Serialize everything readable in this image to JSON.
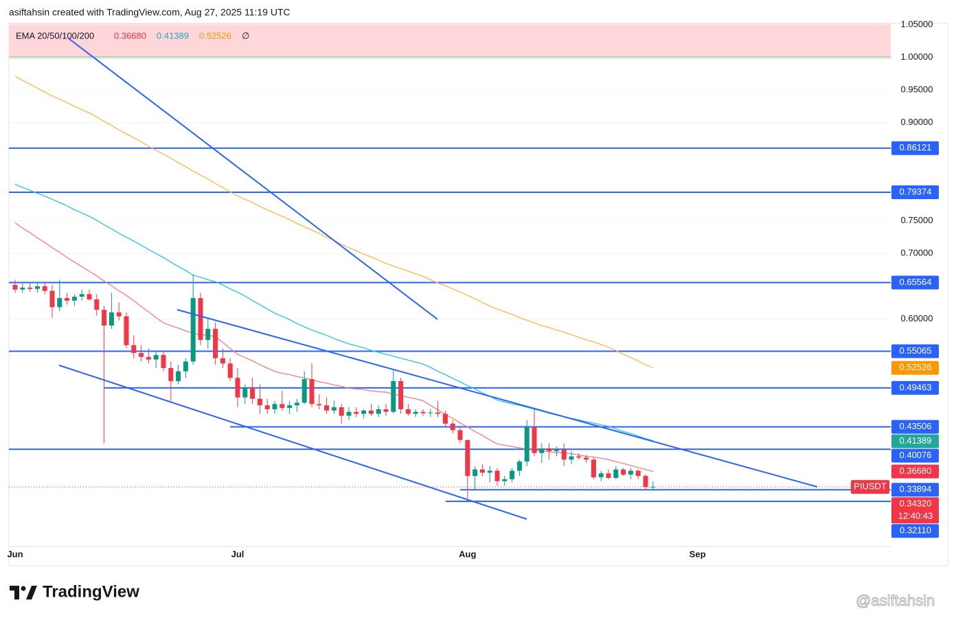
{
  "header": "asiftahsin created with TradingView.com, Aug 27, 2025 11:19 UTC",
  "chart_data": {
    "type": "candlestick",
    "symbol": "PIUSDT",
    "indicator": "EMA 20/50/100/200",
    "ema200_value": "∅",
    "categories": [
      "Jun",
      null,
      null,
      null,
      null,
      null,
      null,
      null,
      null,
      null,
      null,
      null,
      null,
      null,
      null,
      null,
      null,
      null,
      null,
      null,
      null,
      null,
      null,
      null,
      null,
      null,
      null,
      null,
      null,
      null,
      "Jul",
      null,
      null,
      null,
      null,
      null,
      null,
      null,
      null,
      null,
      null,
      null,
      null,
      null,
      null,
      null,
      null,
      null,
      null,
      null,
      null,
      null,
      null,
      null,
      null,
      null,
      null,
      null,
      null,
      null,
      null,
      "Aug",
      null,
      null,
      null,
      null,
      null,
      null,
      null,
      null,
      null,
      null,
      null,
      null,
      null,
      null,
      null,
      null,
      null,
      null,
      null,
      null,
      null,
      null,
      null,
      null,
      null,
      null,
      null,
      null,
      null,
      null,
      "Sep"
    ],
    "open": [
      0.652,
      0.645,
      0.648,
      0.646,
      0.65,
      0.643,
      0.618,
      0.632,
      0.628,
      0.634,
      0.638,
      0.63,
      0.614,
      0.59,
      0.61,
      0.604,
      0.56,
      0.548,
      0.542,
      0.538,
      0.545,
      0.525,
      0.505,
      0.52,
      0.535,
      0.632,
      0.568,
      0.585,
      0.54,
      0.532,
      0.51,
      0.48,
      0.495,
      0.478,
      0.468,
      0.462,
      0.47,
      0.464,
      0.468,
      0.472,
      0.508,
      0.47,
      0.468,
      0.46,
      0.465,
      0.452,
      0.458,
      0.455,
      0.46,
      0.455,
      0.462,
      0.458,
      0.505,
      0.462,
      0.455,
      0.458,
      0.456,
      0.457,
      0.455,
      0.44,
      0.43,
      0.415,
      0.36,
      0.37,
      0.365,
      0.368,
      0.352,
      0.355,
      0.368,
      0.382,
      0.435,
      0.395,
      0.402,
      0.398,
      0.4,
      0.385,
      0.39,
      0.388,
      0.385,
      0.358,
      0.364,
      0.357,
      0.37,
      0.362,
      0.368,
      0.36,
      0.343,
      null,
      null,
      null,
      null,
      null,
      null
    ],
    "high": [
      0.66,
      0.655,
      0.656,
      0.655,
      0.655,
      0.652,
      0.66,
      0.64,
      0.638,
      0.645,
      0.645,
      0.638,
      0.62,
      0.64,
      0.625,
      0.61,
      0.575,
      0.56,
      0.555,
      0.552,
      0.552,
      0.535,
      0.53,
      0.54,
      0.668,
      0.64,
      0.6,
      0.595,
      0.555,
      0.54,
      0.525,
      0.5,
      0.51,
      0.5,
      0.478,
      0.475,
      0.49,
      0.475,
      0.478,
      0.52,
      0.532,
      0.485,
      0.48,
      0.475,
      0.47,
      0.465,
      0.465,
      0.462,
      0.47,
      0.468,
      0.47,
      0.522,
      0.51,
      0.47,
      0.462,
      0.462,
      0.462,
      0.475,
      0.46,
      0.445,
      0.435,
      0.415,
      0.375,
      0.378,
      0.375,
      0.372,
      0.36,
      0.372,
      0.385,
      0.445,
      0.463,
      0.41,
      0.41,
      0.405,
      0.41,
      0.398,
      0.395,
      0.392,
      0.388,
      0.368,
      0.37,
      0.375,
      0.372,
      0.372,
      0.37,
      0.362,
      0.352,
      null,
      null,
      null,
      null,
      null,
      null
    ],
    "low": [
      0.64,
      0.64,
      0.642,
      0.64,
      0.638,
      0.602,
      0.612,
      0.622,
      0.62,
      0.628,
      0.628,
      0.605,
      0.41,
      0.585,
      0.598,
      0.555,
      0.54,
      0.535,
      0.532,
      0.525,
      0.52,
      0.475,
      0.5,
      0.51,
      0.53,
      0.56,
      0.555,
      0.53,
      0.525,
      0.505,
      0.465,
      0.47,
      0.47,
      0.455,
      0.455,
      0.455,
      0.46,
      0.455,
      0.458,
      0.47,
      0.465,
      0.462,
      0.455,
      0.455,
      0.44,
      0.445,
      0.45,
      0.448,
      0.452,
      0.45,
      0.452,
      0.455,
      0.455,
      0.452,
      0.45,
      0.452,
      0.45,
      0.45,
      0.435,
      0.425,
      0.41,
      0.325,
      0.34,
      0.36,
      0.35,
      0.345,
      0.345,
      0.35,
      0.36,
      0.375,
      0.39,
      0.38,
      0.385,
      0.39,
      0.375,
      0.378,
      0.385,
      0.38,
      0.355,
      0.352,
      0.355,
      0.355,
      0.36,
      0.355,
      0.355,
      0.338,
      0.338,
      null,
      null,
      null,
      null,
      null,
      null
    ],
    "close": [
      0.645,
      0.648,
      0.646,
      0.65,
      0.643,
      0.618,
      0.632,
      0.628,
      0.634,
      0.638,
      0.63,
      0.614,
      0.59,
      0.61,
      0.604,
      0.56,
      0.548,
      0.542,
      0.538,
      0.545,
      0.525,
      0.505,
      0.52,
      0.535,
      0.632,
      0.568,
      0.585,
      0.54,
      0.532,
      0.51,
      0.48,
      0.495,
      0.478,
      0.468,
      0.462,
      0.47,
      0.464,
      0.468,
      0.472,
      0.508,
      0.47,
      0.468,
      0.46,
      0.465,
      0.452,
      0.458,
      0.455,
      0.46,
      0.455,
      0.462,
      0.458,
      0.505,
      0.462,
      0.455,
      0.458,
      0.456,
      0.457,
      0.455,
      0.44,
      0.43,
      0.415,
      0.36,
      0.37,
      0.365,
      0.368,
      0.352,
      0.355,
      0.368,
      0.382,
      0.435,
      0.395,
      0.402,
      0.398,
      0.4,
      0.385,
      0.39,
      0.388,
      0.385,
      0.358,
      0.364,
      0.357,
      0.37,
      0.362,
      0.368,
      0.36,
      0.343,
      0.3432,
      null,
      null,
      null,
      null,
      null,
      null
    ],
    "up_color": "#089981",
    "down_color": "#f23645",
    "ylim": [
      0.252,
      1.052
    ],
    "yticks": [
      {
        "value": 1.05,
        "label": "1.05000"
      },
      {
        "value": 1.0,
        "label": "1.00000"
      },
      {
        "value": 0.95,
        "label": "0.95000"
      },
      {
        "value": 0.9,
        "label": "0.90000"
      },
      {
        "value": 0.75,
        "label": "0.75000"
      },
      {
        "value": 0.7,
        "label": "0.70000"
      },
      {
        "value": 0.6,
        "label": "0.60000"
      }
    ],
    "ema": [
      {
        "color": "#f77c80",
        "badge_color": "#f23645",
        "badge": {
          "value": 0.3668,
          "label": "0.36680"
        },
        "values": [
          0.747,
          0.739,
          0.732,
          0.724,
          0.717,
          0.709,
          0.702,
          0.694,
          0.687,
          0.68,
          0.673,
          0.666,
          0.658,
          0.651,
          0.643,
          0.636,
          0.628,
          0.619,
          0.611,
          0.602,
          0.594,
          0.59,
          0.586,
          0.582,
          0.578,
          0.576,
          0.575,
          0.573,
          0.564,
          0.555,
          0.546,
          0.541,
          0.536,
          0.53,
          0.525,
          0.52,
          0.517,
          0.515,
          0.512,
          0.51,
          0.507,
          0.504,
          0.502,
          0.499,
          0.497,
          0.494,
          0.493,
          0.492,
          0.49,
          0.489,
          0.488,
          0.485,
          0.483,
          0.48,
          0.478,
          0.475,
          0.468,
          0.461,
          0.454,
          0.448,
          0.441,
          0.435,
          0.428,
          0.422,
          0.415,
          0.409,
          0.407,
          0.405,
          0.403,
          0.401,
          0.399,
          0.398,
          0.397,
          0.396,
          0.395,
          0.394,
          0.392,
          0.39,
          0.389,
          0.387,
          0.385,
          0.382,
          0.379,
          0.376,
          0.373,
          0.37,
          0.3668,
          null,
          null,
          null,
          null,
          null,
          null
        ]
      },
      {
        "color": "#26c6da",
        "badge_color": "#22a79a",
        "badge": {
          "value": 0.41389,
          "label": "0.41389"
        },
        "values": [
          0.806,
          0.801,
          0.797,
          0.792,
          0.788,
          0.783,
          0.778,
          0.773,
          0.767,
          0.762,
          0.757,
          0.751,
          0.744,
          0.738,
          0.731,
          0.725,
          0.719,
          0.713,
          0.706,
          0.7,
          0.694,
          0.687,
          0.68,
          0.674,
          0.667,
          0.664,
          0.66,
          0.657,
          0.652,
          0.646,
          0.641,
          0.635,
          0.628,
          0.622,
          0.615,
          0.609,
          0.604,
          0.599,
          0.593,
          0.588,
          0.583,
          0.579,
          0.575,
          0.57,
          0.566,
          0.562,
          0.559,
          0.556,
          0.552,
          0.549,
          0.546,
          0.543,
          0.54,
          0.537,
          0.534,
          0.531,
          0.526,
          0.52,
          0.515,
          0.509,
          0.504,
          0.498,
          0.493,
          0.487,
          0.482,
          0.476,
          0.473,
          0.47,
          0.468,
          0.465,
          0.462,
          0.459,
          0.456,
          0.453,
          0.451,
          0.448,
          0.446,
          0.443,
          0.441,
          0.438,
          0.436,
          0.432,
          0.428,
          0.425,
          0.421,
          0.417,
          0.41389,
          null,
          null,
          null,
          null,
          null,
          null
        ]
      },
      {
        "color": "#ffb74d",
        "badge_color": "#ff9800",
        "badge": {
          "value": 0.52526,
          "label": "0.52526"
        },
        "values": [
          0.971,
          0.965,
          0.959,
          0.953,
          0.947,
          0.941,
          0.936,
          0.931,
          0.925,
          0.92,
          0.915,
          0.909,
          0.902,
          0.896,
          0.889,
          0.883,
          0.877,
          0.871,
          0.864,
          0.858,
          0.852,
          0.846,
          0.839,
          0.833,
          0.826,
          0.82,
          0.814,
          0.807,
          0.801,
          0.794,
          0.788,
          0.783,
          0.778,
          0.772,
          0.767,
          0.762,
          0.757,
          0.752,
          0.746,
          0.741,
          0.736,
          0.731,
          0.725,
          0.72,
          0.714,
          0.709,
          0.704,
          0.699,
          0.695,
          0.69,
          0.685,
          0.681,
          0.677,
          0.673,
          0.669,
          0.665,
          0.66,
          0.655,
          0.651,
          0.646,
          0.641,
          0.636,
          0.631,
          0.625,
          0.62,
          0.615,
          0.611,
          0.607,
          0.602,
          0.598,
          0.594,
          0.59,
          0.587,
          0.583,
          0.58,
          0.576,
          0.572,
          0.568,
          0.565,
          0.561,
          0.557,
          0.552,
          0.546,
          0.541,
          0.536,
          0.53,
          0.52526,
          null,
          null,
          null,
          null,
          null,
          null
        ]
      }
    ],
    "levels": [
      {
        "value": 0.86121,
        "label": "0.86121"
      },
      {
        "value": 0.79374,
        "label": "0.79374"
      },
      {
        "value": 0.65564,
        "label": "0.65564"
      },
      {
        "value": 0.55065,
        "label": "0.55065"
      },
      {
        "value": 0.49463,
        "label": "0.49463"
      },
      {
        "value": 0.43506,
        "label": "0.43506"
      },
      {
        "value": 0.40076,
        "label": "0.40076"
      },
      {
        "value": 0.33894,
        "label": "0.33894"
      },
      {
        "value": 0.3211,
        "label": "0.32110"
      }
    ],
    "level_color": "#2962ff",
    "zone_from": 1.0,
    "zone_color": "#ffd6d9",
    "zone_line_color": "#4caf50",
    "price": {
      "value": 0.3432,
      "label": "0.34320"
    },
    "countdown": "12:40:43"
  },
  "footer": {
    "brand": "TradingView",
    "watermark": "@asiftahsin"
  }
}
